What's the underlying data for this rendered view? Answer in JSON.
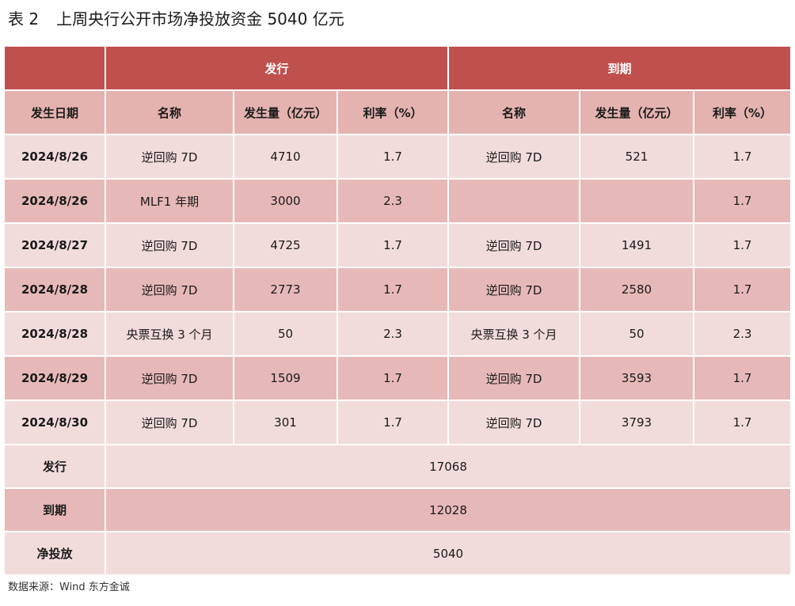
{
  "title": {
    "number": "表 2",
    "text": "上周央行公开市场净投放资金 5040 亿元"
  },
  "table": {
    "group_headers": {
      "issue": "发行",
      "maturity": "到期"
    },
    "columns": {
      "date": "发生日期",
      "issue_name": "名称",
      "issue_amount": "发生量（亿元）",
      "issue_rate": "利率（%）",
      "maturity_name": "名称",
      "maturity_amount": "发生量（亿元）",
      "maturity_rate": "利率（%）"
    },
    "rows": [
      {
        "date": "2024/8/26",
        "issue_name": "逆回购 7D",
        "issue_amount": "4710",
        "issue_rate": "1.7",
        "maturity_name": "逆回购 7D",
        "maturity_amount": "521",
        "maturity_rate": "1.7"
      },
      {
        "date": "2024/8/26",
        "issue_name": "MLF1 年期",
        "issue_amount": "3000",
        "issue_rate": "2.3",
        "maturity_name": "",
        "maturity_amount": "",
        "maturity_rate": "1.7"
      },
      {
        "date": "2024/8/27",
        "issue_name": "逆回购 7D",
        "issue_amount": "4725",
        "issue_rate": "1.7",
        "maturity_name": "逆回购 7D",
        "maturity_amount": "1491",
        "maturity_rate": "1.7"
      },
      {
        "date": "2024/8/28",
        "issue_name": "逆回购 7D",
        "issue_amount": "2773",
        "issue_rate": "1.7",
        "maturity_name": "逆回购 7D",
        "maturity_amount": "2580",
        "maturity_rate": "1.7"
      },
      {
        "date": "2024/8/28",
        "issue_name": "央票互换 3 个月",
        "issue_amount": "50",
        "issue_rate": "2.3",
        "maturity_name": "央票互换 3 个月",
        "maturity_amount": "50",
        "maturity_rate": "2.3"
      },
      {
        "date": "2024/8/29",
        "issue_name": "逆回购 7D",
        "issue_amount": "1509",
        "issue_rate": "1.7",
        "maturity_name": "逆回购 7D",
        "maturity_amount": "3593",
        "maturity_rate": "1.7"
      },
      {
        "date": "2024/8/30",
        "issue_name": "逆回购 7D",
        "issue_amount": "301",
        "issue_rate": "1.7",
        "maturity_name": "逆回购 7D",
        "maturity_amount": "3793",
        "maturity_rate": "1.7"
      }
    ],
    "summary": [
      {
        "label": "发行",
        "value": "17068"
      },
      {
        "label": "到期",
        "value": "12028"
      },
      {
        "label": "净投放",
        "value": "5040"
      }
    ]
  },
  "source": "数据来源：Wind 东方金诚",
  "colors": {
    "header_red": "#c0504d",
    "column_header": "#e4b3b0",
    "row_light": "#f2dcdb",
    "row_dark": "#e6b9b8"
  }
}
